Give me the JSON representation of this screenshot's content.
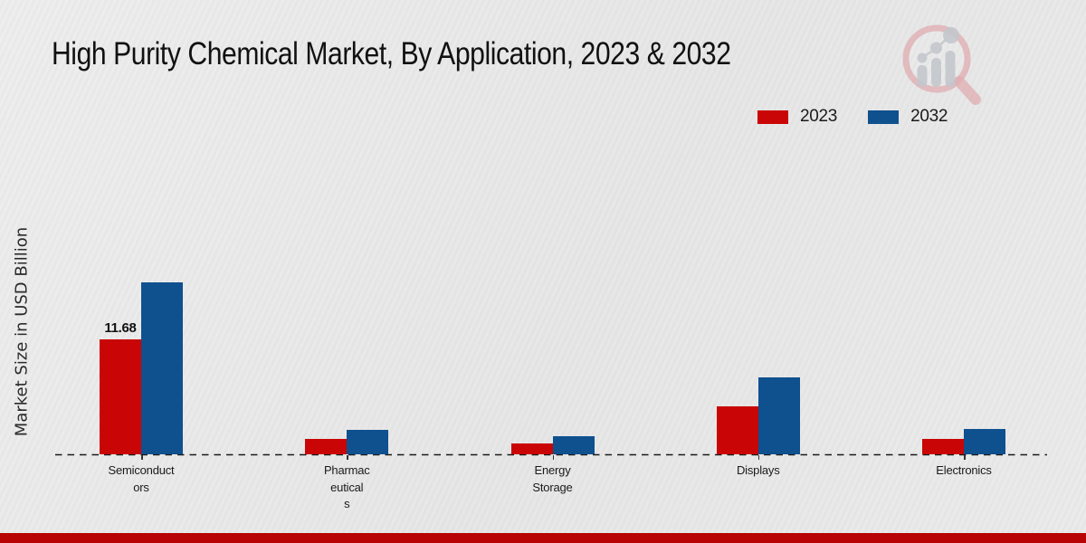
{
  "page": {
    "title": "High Purity Chemical Market, By Application, 2023 & 2032",
    "bottom_strip_color": "#b80404",
    "background_color": "#e9e9e9"
  },
  "watermark": {
    "icon": "magnifier-bar-chart-logo",
    "ring_color": "#e0adb2",
    "bars_color": "#c4c7cd"
  },
  "chart_data": {
    "type": "bar",
    "title": "High Purity Chemical Market, By Application, 2023 & 2032",
    "xlabel": "",
    "ylabel": "Market Size in USD Billion",
    "categories": [
      "Semiconductors",
      "Pharmaceuticals",
      "Energy Storage",
      "Displays",
      "Electronics"
    ],
    "category_label_lines": [
      [
        "Semiconduct",
        "ors"
      ],
      [
        "Pharmac",
        "eutical",
        "s"
      ],
      [
        "Energy",
        "Storage"
      ],
      [
        "Displays"
      ],
      [
        "Electronics"
      ]
    ],
    "series": [
      {
        "name": "2023",
        "color": "#c90505",
        "values": [
          11.68,
          1.6,
          1.1,
          4.9,
          1.6
        ]
      },
      {
        "name": "2032",
        "color": "#0f508f",
        "values": [
          17.5,
          2.5,
          1.8,
          7.8,
          2.6
        ]
      }
    ],
    "value_labels": [
      {
        "series_index": 0,
        "category_index": 0,
        "text": "11.68"
      }
    ],
    "ylim": [
      0,
      20
    ],
    "y_axis_ticks_visible": false,
    "grid": false,
    "baseline_style": "dashed",
    "legend_position": "top-right"
  }
}
